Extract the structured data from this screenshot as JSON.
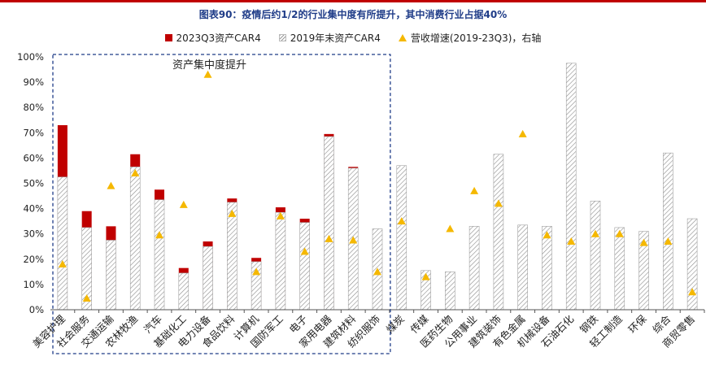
{
  "title": "图表90：疫情后约1/2的行业集中度有所提升，其中消费行业占据40%",
  "legend": {
    "car2023": "2023Q3资产CAR4",
    "car2019": "2019年末资产CAR4",
    "growth": "营收增速(2019-23Q3)，右轴"
  },
  "annotation": "资产集中度提升",
  "colors": {
    "red": "#c00000",
    "hatch": "#9a9a9a",
    "triangle": "#f5b800",
    "box": "#1f3c88"
  },
  "chart_data": {
    "type": "bar",
    "categories": [
      "美容护理",
      "社会服务",
      "交通运输",
      "农林牧渔",
      "汽车",
      "基础化工",
      "电力设备",
      "食品饮料",
      "计算机",
      "国防军工",
      "电子",
      "家用电器",
      "建筑材料",
      "纺织服饰",
      "煤炭",
      "传媒",
      "医药生物",
      "公用事业",
      "建筑装饰",
      "有色金属",
      "机械设备",
      "石油石化",
      "钢铁",
      "轻工制造",
      "环保",
      "综合",
      "商贸零售"
    ],
    "series": [
      {
        "name": "2019年末资产CAR4",
        "values": [
          52.5,
          32.5,
          27.5,
          56.5,
          43.5,
          14.5,
          25.0,
          42.5,
          19.0,
          38.5,
          34.5,
          68.5,
          56.0,
          32.0,
          57.0,
          15.5,
          15.0,
          33.0,
          61.5,
          33.5,
          33.0,
          97.5,
          43.0,
          32.5,
          31.0,
          62.0,
          36.0
        ]
      },
      {
        "name": "2023Q3资产CAR4",
        "values": [
          73.0,
          39.0,
          33.0,
          61.5,
          47.5,
          16.5,
          27.0,
          44.0,
          20.5,
          40.5,
          36.0,
          69.5,
          56.5,
          null,
          null,
          null,
          null,
          null,
          null,
          null,
          null,
          null,
          null,
          null,
          null,
          null,
          null
        ]
      },
      {
        "name": "营收增速(2019-23Q3)，右轴",
        "values": [
          18,
          4.5,
          49,
          54,
          29.5,
          41.5,
          93,
          38,
          15,
          37,
          23,
          28,
          27.5,
          15,
          35,
          13,
          32,
          47,
          42,
          69.5,
          29.5,
          27,
          30,
          30,
          26.5,
          27,
          7
        ]
      }
    ],
    "y_ticks": [
      "0%",
      "10%",
      "20%",
      "30%",
      "40%",
      "50%",
      "60%",
      "70%",
      "80%",
      "90%",
      "100%"
    ],
    "ylim": [
      0,
      100
    ],
    "ylabel": "",
    "xlabel": "",
    "legend_position": "top-center",
    "highlight_box": {
      "from": 0,
      "to": 13,
      "label": "资产集中度提升"
    }
  }
}
